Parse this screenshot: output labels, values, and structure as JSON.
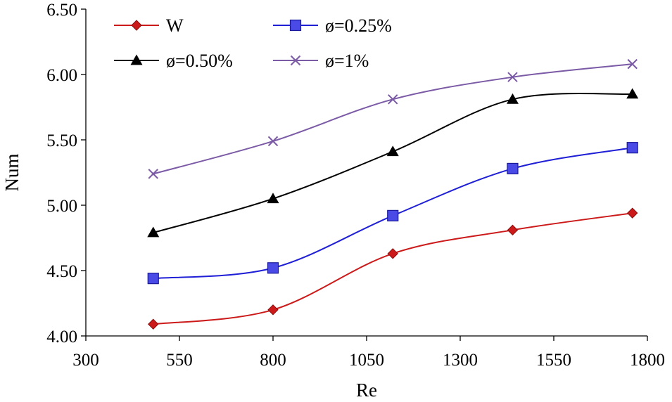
{
  "chart_data": {
    "type": "line",
    "title": "",
    "xlabel": "Re",
    "ylabel": "Num",
    "xlim": [
      300,
      1800
    ],
    "ylim": [
      4.0,
      6.5
    ],
    "xticks": [
      300,
      550,
      800,
      1050,
      1300,
      1550,
      1800
    ],
    "xtick_labels": [
      "300",
      "550",
      "800",
      "1050",
      "1300",
      "1550",
      "1800"
    ],
    "yticks": [
      4.0,
      4.5,
      5.0,
      5.5,
      6.0,
      6.5
    ],
    "ytick_labels": [
      "4.00",
      "4.50",
      "5.00",
      "5.50",
      "6.00",
      "6.50"
    ],
    "grid": false,
    "legend_position": "top-left",
    "x": [
      480,
      800,
      1120,
      1440,
      1760
    ],
    "series": [
      {
        "name": "W",
        "marker": "diamond",
        "color": "#cc1a1a",
        "values": [
          4.09,
          4.2,
          4.63,
          4.81,
          4.94
        ]
      },
      {
        "name": "ø=0.25%",
        "marker": "square",
        "color": "#1f1fd6",
        "values": [
          4.44,
          4.52,
          4.92,
          5.28,
          5.44
        ]
      },
      {
        "name": "ø=0.50%",
        "marker": "triangle",
        "color": "#000000",
        "values": [
          4.79,
          5.05,
          5.41,
          5.81,
          5.85
        ]
      },
      {
        "name": "ø=1%",
        "marker": "x",
        "color": "#7b5aa6",
        "values": [
          5.24,
          5.49,
          5.81,
          5.98,
          6.08
        ]
      }
    ]
  }
}
